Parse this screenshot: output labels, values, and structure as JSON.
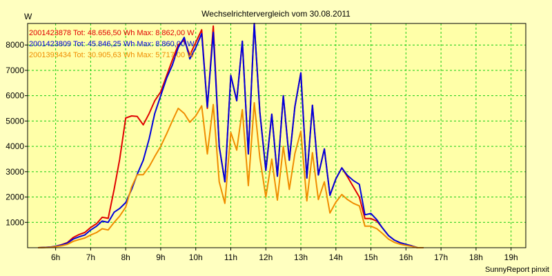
{
  "chart_data": {
    "type": "line",
    "title": "Wechselrichtervergleich vom 30.08.2011",
    "ylabel": "W",
    "xlabel": "",
    "footer": "SunnyReport pinxit",
    "grid": true,
    "legend_placement": "top-left",
    "colors": {
      "background": "#ffffc0",
      "plot_bg": "#ffffa8",
      "grid": "#11cc11",
      "series_red": "#e00000",
      "series_blue": "#0000dd",
      "series_orange": "#f08c00"
    },
    "xlim": [
      5.2,
      19.42
    ],
    "ylim": [
      0,
      8850
    ],
    "xticks": [
      {
        "value": 6,
        "label": "6h"
      },
      {
        "value": 7,
        "label": "7h"
      },
      {
        "value": 8,
        "label": "8h"
      },
      {
        "value": 9,
        "label": "9h"
      },
      {
        "value": 10,
        "label": "10h"
      },
      {
        "value": 11,
        "label": "11h"
      },
      {
        "value": 12,
        "label": "12h"
      },
      {
        "value": 13,
        "label": "13h"
      },
      {
        "value": 14,
        "label": "14h"
      },
      {
        "value": 15,
        "label": "15h"
      },
      {
        "value": 16,
        "label": "16h"
      },
      {
        "value": 17,
        "label": "17h"
      },
      {
        "value": 18,
        "label": "18h"
      },
      {
        "value": 19,
        "label": "19h"
      }
    ],
    "yticks": [
      {
        "value": 1000,
        "label": "1000"
      },
      {
        "value": 2000,
        "label": "2000"
      },
      {
        "value": 3000,
        "label": "3000"
      },
      {
        "value": 4000,
        "label": "4000"
      },
      {
        "value": 5000,
        "label": "5000"
      },
      {
        "value": 6000,
        "label": "6000"
      },
      {
        "value": 7000,
        "label": "7000"
      },
      {
        "value": 8000,
        "label": "8000"
      }
    ],
    "series": [
      {
        "name": "2001423878 Tot: 48.656,50 Wh Max: 8.862,00 W",
        "color": "#e00000",
        "points": [
          [
            5.5,
            0
          ],
          [
            5.83,
            20
          ],
          [
            6,
            60
          ],
          [
            6.17,
            120
          ],
          [
            6.33,
            200
          ],
          [
            6.5,
            400
          ],
          [
            6.67,
            520
          ],
          [
            6.83,
            600
          ],
          [
            7,
            800
          ],
          [
            7.17,
            950
          ],
          [
            7.33,
            1200
          ],
          [
            7.5,
            1160
          ],
          [
            7.67,
            2300
          ],
          [
            7.83,
            3500
          ],
          [
            8,
            5120
          ],
          [
            8.17,
            5200
          ],
          [
            8.33,
            5180
          ],
          [
            8.5,
            4850
          ],
          [
            8.67,
            5300
          ],
          [
            8.83,
            5800
          ],
          [
            9,
            6150
          ],
          [
            9.17,
            6800
          ],
          [
            9.33,
            7400
          ],
          [
            9.5,
            8000
          ],
          [
            9.67,
            8200
          ],
          [
            9.83,
            7600
          ],
          [
            10,
            8100
          ],
          [
            10.17,
            8600
          ],
          [
            10.33,
            5500
          ],
          [
            10.5,
            8750
          ],
          [
            10.67,
            4000
          ],
          [
            10.83,
            2600
          ],
          [
            11,
            6800
          ],
          [
            11.17,
            5800
          ],
          [
            11.33,
            8150
          ],
          [
            11.5,
            3700
          ],
          [
            11.67,
            8850
          ],
          [
            11.83,
            5350
          ],
          [
            12,
            3050
          ],
          [
            12.17,
            5270
          ],
          [
            12.33,
            2820
          ],
          [
            12.5,
            6000
          ],
          [
            12.67,
            3450
          ],
          [
            12.83,
            5570
          ],
          [
            13,
            6900
          ],
          [
            13.17,
            2750
          ],
          [
            13.33,
            5620
          ],
          [
            13.5,
            2870
          ],
          [
            13.67,
            3900
          ],
          [
            13.83,
            2070
          ],
          [
            14,
            2720
          ],
          [
            14.17,
            3150
          ],
          [
            14.33,
            2800
          ],
          [
            14.5,
            2400
          ],
          [
            14.67,
            2000
          ],
          [
            14.83,
            1150
          ],
          [
            15,
            1150
          ],
          [
            15.17,
            1050
          ],
          [
            15.33,
            780
          ],
          [
            15.5,
            480
          ],
          [
            15.67,
            300
          ],
          [
            15.83,
            200
          ],
          [
            16,
            130
          ],
          [
            16.17,
            70
          ],
          [
            16.33,
            0
          ],
          [
            16.5,
            0
          ]
        ]
      },
      {
        "name": "2001423809 Tot: 45.846,25 Wh Max: 8.860,00 W",
        "color": "#0000dd",
        "points": [
          [
            5.5,
            0
          ],
          [
            5.83,
            20
          ],
          [
            6,
            60
          ],
          [
            6.17,
            110
          ],
          [
            6.33,
            180
          ],
          [
            6.5,
            340
          ],
          [
            6.67,
            430
          ],
          [
            6.83,
            500
          ],
          [
            7,
            700
          ],
          [
            7.17,
            850
          ],
          [
            7.33,
            1050
          ],
          [
            7.5,
            1000
          ],
          [
            7.67,
            1400
          ],
          [
            7.83,
            1550
          ],
          [
            8,
            1780
          ],
          [
            8.17,
            2300
          ],
          [
            8.33,
            2900
          ],
          [
            8.5,
            3450
          ],
          [
            8.67,
            4300
          ],
          [
            8.83,
            5300
          ],
          [
            9,
            6000
          ],
          [
            9.17,
            6700
          ],
          [
            9.33,
            7200
          ],
          [
            9.5,
            7900
          ],
          [
            9.67,
            8300
          ],
          [
            9.83,
            7450
          ],
          [
            10,
            7900
          ],
          [
            10.17,
            8450
          ],
          [
            10.33,
            5550
          ],
          [
            10.5,
            8500
          ],
          [
            10.67,
            4000
          ],
          [
            10.83,
            2600
          ],
          [
            11,
            6800
          ],
          [
            11.17,
            5800
          ],
          [
            11.33,
            8150
          ],
          [
            11.5,
            3700
          ],
          [
            11.67,
            8850
          ],
          [
            11.83,
            5350
          ],
          [
            12,
            3050
          ],
          [
            12.17,
            5270
          ],
          [
            12.33,
            2820
          ],
          [
            12.5,
            6000
          ],
          [
            12.67,
            3450
          ],
          [
            12.83,
            5570
          ],
          [
            13,
            6900
          ],
          [
            13.17,
            2750
          ],
          [
            13.33,
            5620
          ],
          [
            13.5,
            2870
          ],
          [
            13.67,
            3900
          ],
          [
            13.83,
            2070
          ],
          [
            14,
            2720
          ],
          [
            14.17,
            3150
          ],
          [
            14.33,
            2850
          ],
          [
            14.5,
            2650
          ],
          [
            14.67,
            2500
          ],
          [
            14.83,
            1300
          ],
          [
            15,
            1350
          ],
          [
            15.17,
            1100
          ],
          [
            15.33,
            780
          ],
          [
            15.5,
            480
          ],
          [
            15.67,
            300
          ],
          [
            15.83,
            200
          ],
          [
            16,
            130
          ],
          [
            16.17,
            70
          ],
          [
            16.33,
            0
          ],
          [
            16.5,
            0
          ]
        ]
      },
      {
        "name": "2001393434 Tot: 30.905,63 Wh Max: 5.717,00 W",
        "color": "#f08c00",
        "points": [
          [
            5.5,
            0
          ],
          [
            5.83,
            10
          ],
          [
            6,
            40
          ],
          [
            6.17,
            80
          ],
          [
            6.33,
            130
          ],
          [
            6.5,
            250
          ],
          [
            6.67,
            320
          ],
          [
            6.83,
            380
          ],
          [
            7,
            500
          ],
          [
            7.17,
            600
          ],
          [
            7.33,
            750
          ],
          [
            7.5,
            700
          ],
          [
            7.67,
            1000
          ],
          [
            7.83,
            1250
          ],
          [
            8,
            1600
          ],
          [
            8.17,
            2400
          ],
          [
            8.33,
            2880
          ],
          [
            8.5,
            2880
          ],
          [
            8.67,
            3200
          ],
          [
            8.83,
            3600
          ],
          [
            9,
            4000
          ],
          [
            9.17,
            4500
          ],
          [
            9.33,
            5000
          ],
          [
            9.5,
            5500
          ],
          [
            9.67,
            5300
          ],
          [
            9.83,
            4950
          ],
          [
            10,
            5200
          ],
          [
            10.17,
            5600
          ],
          [
            10.33,
            3700
          ],
          [
            10.5,
            5650
          ],
          [
            10.67,
            2600
          ],
          [
            10.83,
            1750
          ],
          [
            11,
            4550
          ],
          [
            11.17,
            3850
          ],
          [
            11.33,
            5450
          ],
          [
            11.5,
            2450
          ],
          [
            11.67,
            5720
          ],
          [
            11.83,
            3550
          ],
          [
            12,
            2000
          ],
          [
            12.17,
            3500
          ],
          [
            12.33,
            1880
          ],
          [
            12.5,
            4000
          ],
          [
            12.67,
            2300
          ],
          [
            12.83,
            3720
          ],
          [
            13,
            4600
          ],
          [
            13.17,
            1850
          ],
          [
            13.33,
            3750
          ],
          [
            13.5,
            1900
          ],
          [
            13.67,
            2600
          ],
          [
            13.83,
            1370
          ],
          [
            14,
            1800
          ],
          [
            14.17,
            2100
          ],
          [
            14.33,
            1900
          ],
          [
            14.5,
            1750
          ],
          [
            14.67,
            1650
          ],
          [
            14.83,
            850
          ],
          [
            15,
            850
          ],
          [
            15.17,
            750
          ],
          [
            15.33,
            560
          ],
          [
            15.5,
            340
          ],
          [
            15.67,
            210
          ],
          [
            15.83,
            140
          ],
          [
            16,
            90
          ],
          [
            16.17,
            50
          ],
          [
            16.33,
            0
          ],
          [
            16.5,
            0
          ]
        ]
      }
    ]
  }
}
